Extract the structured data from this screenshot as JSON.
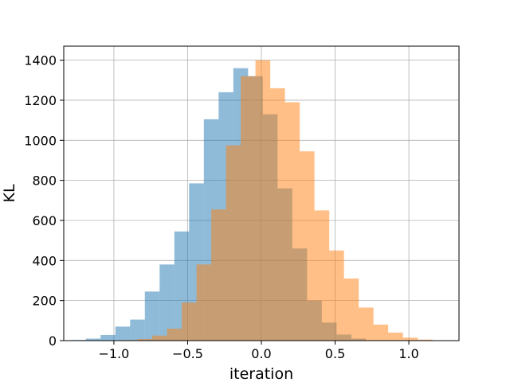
{
  "chart_data": {
    "type": "bar",
    "xlabel": "iteration",
    "ylabel": "KL",
    "xlim": [
      -1.34,
      1.34
    ],
    "ylim": [
      0,
      1470
    ],
    "grid": true,
    "xticks": [
      -1.0,
      -0.5,
      0.0,
      0.5,
      1.0
    ],
    "xtick_labels": [
      "−1.0",
      "−0.5",
      "0.0",
      "0.5",
      "1.0"
    ],
    "yticks": [
      0,
      200,
      400,
      600,
      800,
      1000,
      1200,
      1400
    ],
    "ytick_labels": [
      "0",
      "200",
      "400",
      "600",
      "800",
      "1000",
      "1200",
      "1400"
    ],
    "series": [
      {
        "color": "#1f77b4",
        "opacity": 0.5,
        "bin_edges": [
          -1.29,
          -1.19,
          -1.09,
          -0.99,
          -0.89,
          -0.79,
          -0.69,
          -0.59,
          -0.49,
          -0.39,
          -0.29,
          -0.19,
          -0.09,
          0.01,
          0.11,
          0.21,
          0.31,
          0.41,
          0.51,
          0.61,
          0.71
        ],
        "values": [
          3,
          10,
          28,
          70,
          105,
          245,
          380,
          545,
          785,
          1105,
          1240,
          1360,
          1320,
          1130,
          760,
          460,
          200,
          90,
          30,
          10
        ]
      },
      {
        "color": "#ff7f0e",
        "opacity": 0.5,
        "bin_edges": [
          -0.94,
          -0.84,
          -0.74,
          -0.64,
          -0.54,
          -0.44,
          -0.34,
          -0.24,
          -0.14,
          -0.04,
          0.06,
          0.16,
          0.26,
          0.36,
          0.46,
          0.56,
          0.66,
          0.76,
          0.86,
          0.96,
          1.06,
          1.16
        ],
        "values": [
          3,
          8,
          25,
          60,
          190,
          380,
          655,
          975,
          1320,
          1400,
          1260,
          1190,
          945,
          650,
          450,
          310,
          165,
          80,
          40,
          15,
          5
        ]
      }
    ]
  }
}
